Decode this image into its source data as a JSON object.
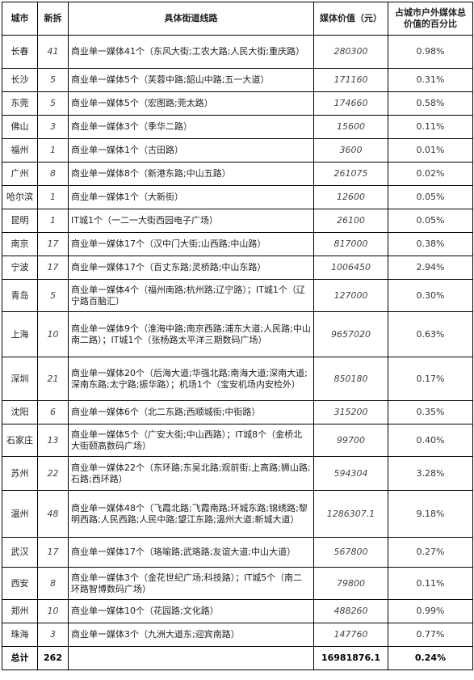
{
  "table": {
    "header": [
      "城市",
      "新拆",
      "具体街道线路",
      "媒体价值（元）",
      "占城市户外媒体总价值的百分比"
    ],
    "rows": [
      [
        "长春",
        "41",
        "商业单一媒体41个（东风大街;工农大路;人民大街;重庆路）",
        "280300",
        "0.98%"
      ],
      [
        "长沙",
        "5",
        "商业单一媒体5个（芙蓉中路;韶山中路;五一大道）",
        "171160",
        "0.31%"
      ],
      [
        "东莞",
        "5",
        "商业单一媒体5个（宏图路;莞太路）",
        "174660",
        "0.58%"
      ],
      [
        "佛山",
        "3",
        "商业单一媒体3个（季华二路）",
        "15600",
        "0.11%"
      ],
      [
        "福州",
        "1",
        "商业单一媒体1个（古田路）",
        "3600",
        "0.01%"
      ],
      [
        "广州",
        "8",
        "商业单一媒体8个（新港东路;中山五路）",
        "261075",
        "0.02%"
      ],
      [
        "哈尔滨",
        "1",
        "商业单一媒体1个（大新街）",
        "12600",
        "0.05%"
      ],
      [
        "昆明",
        "1",
        "IT城1个（一二一大街西园电子广场）",
        "26100",
        "0.05%"
      ],
      [
        "南京",
        "17",
        "商业单一媒体17个（汉中门大街;山西路;中山路）",
        "817000",
        "0.38%"
      ],
      [
        "宁波",
        "17",
        "商业单一媒体17个（百丈东路;灵桥路;中山东路）",
        "1006450",
        "2.94%"
      ],
      [
        "青岛",
        "5",
        "商业单一媒体4个（福州南路;杭州路;辽宁路）；IT城1个（辽宁路百脑汇）",
        "127000",
        "0.30%"
      ],
      [
        "上海",
        "10",
        "商业单一媒体9个（淮海中路;南京西路;浦东大道;人民路;中山南二路）；IT城1个（张杨路太平洋三期数码广场）",
        "9657020",
        "0.63%"
      ],
      [
        "深圳",
        "21",
        "商业单一媒体20个（后海大道;华强北路;南海大道;深南大道;深南东路;太宁路;振华路）；机场1个（宝安机场内安检外）",
        "850180",
        "0.17%"
      ],
      [
        "沈阳",
        "6",
        "商业单一媒体6个（北二东路;西顺城街;中街路）",
        "315200",
        "0.35%"
      ],
      [
        "石家庄",
        "13",
        "商业单一媒体5个（广安大街;中山西路）；IT城8个（金桥北大街颐高数码广场）",
        "99700",
        "0.40%"
      ],
      [
        "苏州",
        "22",
        "商业单一媒体22个（东环路;东吴北路;观前街;上高路;狮山路;石路;西环路）",
        "594304",
        "3.28%"
      ],
      [
        "温州",
        "48",
        "商业单一媒体48个（飞霞北路;飞霞南路;环城东路;锦绣路;黎明西路;人民西路;人民中路;望江东路;温州大道;新城大道）",
        "1286307.1",
        "9.18%"
      ],
      [
        "武汉",
        "17",
        "商业单一媒体17个（珞喻路;武珞路;友谊大道;中山大道）",
        "567800",
        "0.27%"
      ],
      [
        "西安",
        "8",
        "商业单一媒体3个（金花世纪广场;科技路）；IT城5个（南二环路智博数码广场）",
        "79800",
        "0.11%"
      ],
      [
        "郑州",
        "10",
        "商业单一媒体10个（花园路;文化路）",
        "488260",
        "0.99%"
      ],
      [
        "珠海",
        "3",
        "商业单一媒体3个（九洲大道东;迎宾南路）",
        "147760",
        "0.77%"
      ]
    ],
    "total": [
      "总计",
      "262",
      "16981876.1",
      "0.24%"
    ]
  }
}
